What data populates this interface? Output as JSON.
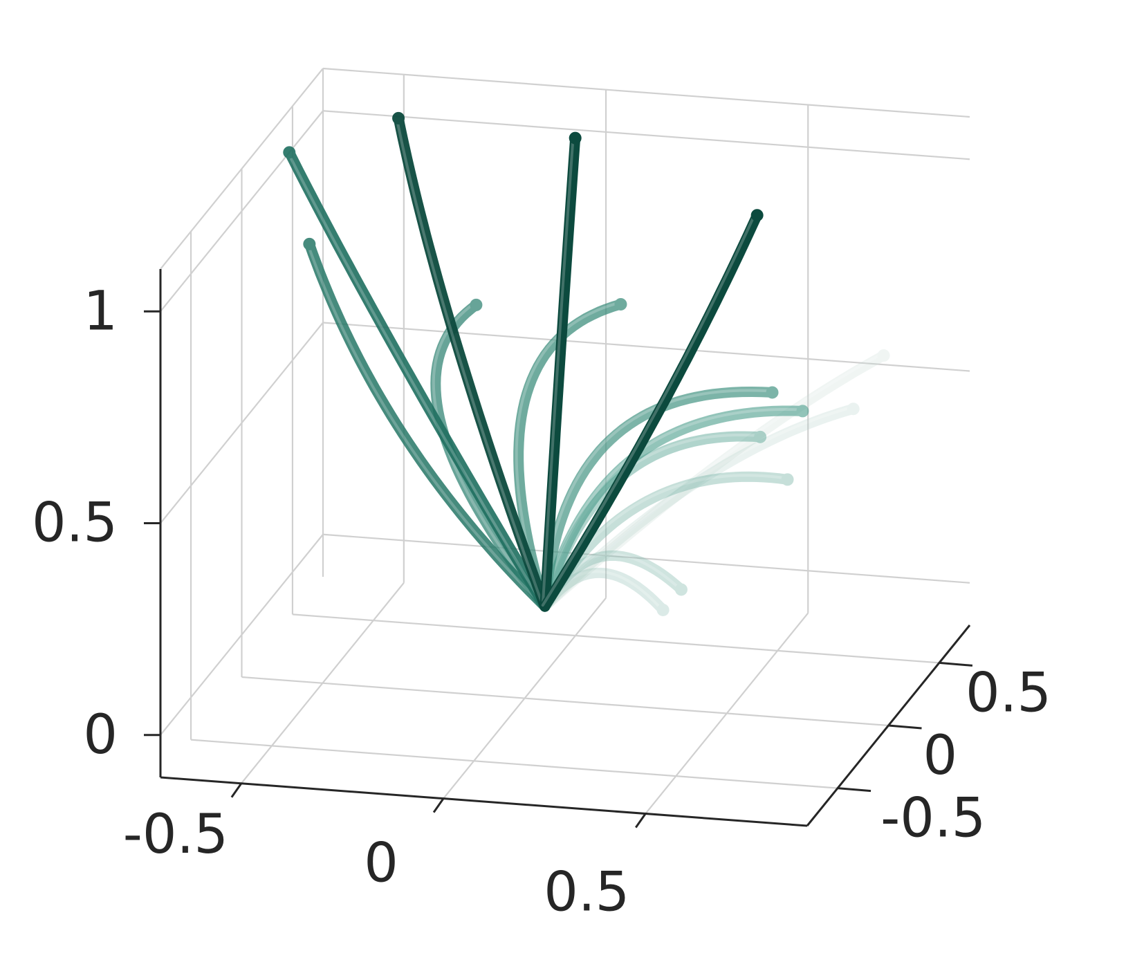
{
  "chart_data": {
    "type": "line3d",
    "title": "",
    "xlabel": "",
    "ylabel": "",
    "zlabel": "",
    "xlim": [
      -0.7,
      0.9
    ],
    "ylim": [
      -0.8,
      0.8
    ],
    "zlim": [
      -0.1,
      1.1
    ],
    "grid": true,
    "legend": "none",
    "view": {
      "azimuth_deg": -15,
      "elevation_deg": 15
    },
    "tick_labels": {
      "x": [
        "-0.5",
        "0",
        "0.5"
      ],
      "y": [
        "-0.5",
        "0",
        "0.5"
      ],
      "z": [
        "0",
        "0.5",
        "1"
      ]
    },
    "tick_values": {
      "x": [
        -0.5,
        0,
        0.5
      ],
      "y": [
        -0.5,
        0,
        0.5
      ],
      "z": [
        0,
        0.5,
        1
      ]
    },
    "colors": {
      "dark": "#0c4a3e",
      "mid": "#1f6f60",
      "light": "#4b9d8c",
      "faint": "#c9dcd6",
      "axis": "#262626",
      "grid": "#d0d0d0"
    },
    "origin": [
      0.05,
      0.0,
      0.12
    ],
    "series": [
      {
        "end": [
          -0.62,
          0.15,
          1.1
        ],
        "bend": [
          -0.1,
          0.0,
          0.12
        ],
        "opacity": 0.9
      },
      {
        "end": [
          -0.35,
          0.15,
          1.2
        ],
        "bend": [
          -0.08,
          0.0,
          0.1
        ],
        "opacity": 0.95
      },
      {
        "end": [
          -0.52,
          -0.05,
          0.95
        ],
        "bend": [
          -0.12,
          0.0,
          -0.05
        ],
        "opacity": 0.85
      },
      {
        "end": [
          0.1,
          0.1,
          1.2
        ],
        "bend": [
          0.0,
          0.0,
          0.05
        ],
        "opacity": 1.0
      },
      {
        "end": [
          0.55,
          0.1,
          1.05
        ],
        "bend": [
          0.05,
          0.0,
          0.02
        ],
        "opacity": 1.0
      },
      {
        "end": [
          -0.12,
          0.0,
          0.82
        ],
        "bend": [
          -0.35,
          0.0,
          0.15
        ],
        "opacity": 0.75
      },
      {
        "end": [
          0.2,
          0.15,
          0.8
        ],
        "bend": [
          -0.3,
          0.05,
          0.22
        ],
        "opacity": 0.72
      },
      {
        "end": [
          0.6,
          0.05,
          0.65
        ],
        "bend": [
          -0.25,
          0.05,
          0.25
        ],
        "opacity": 0.68
      },
      {
        "end": [
          0.65,
          0.15,
          0.58
        ],
        "bend": [
          -0.2,
          0.05,
          0.22
        ],
        "opacity": 0.6
      },
      {
        "end": [
          0.52,
          0.25,
          0.48
        ],
        "bend": [
          -0.15,
          0.05,
          0.2
        ],
        "opacity": 0.5
      },
      {
        "end": [
          0.6,
          0.2,
          0.4
        ],
        "bend": [
          -0.1,
          0.05,
          0.18
        ],
        "opacity": 0.42
      },
      {
        "end": [
          0.4,
          -0.05,
          0.2
        ],
        "bend": [
          -0.05,
          0.05,
          0.18
        ],
        "opacity": 0.38
      },
      {
        "end": [
          0.38,
          -0.15,
          0.18
        ],
        "bend": [
          -0.03,
          0.05,
          0.15
        ],
        "opacity": 0.32
      },
      {
        "end": [
          0.7,
          0.45,
          0.5
        ],
        "bend": [
          0.0,
          0.05,
          0.12
        ],
        "opacity": 0.2
      },
      {
        "end": [
          0.75,
          0.55,
          0.6
        ],
        "bend": [
          0.05,
          0.05,
          0.1
        ],
        "opacity": 0.12
      }
    ]
  }
}
